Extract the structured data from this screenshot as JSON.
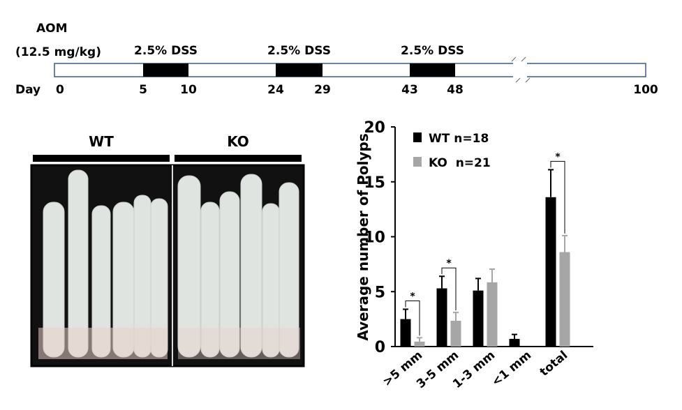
{
  "timeline": {
    "agent": "AOM",
    "dose": "(12.5 mg/kg)",
    "day_label": "Day",
    "days": [
      0,
      5,
      10,
      24,
      29,
      43,
      48,
      100
    ],
    "treatments": [
      {
        "label": "2.5% DSS",
        "start": 5,
        "end": 10
      },
      {
        "label": "2.5% DSS",
        "start": 24,
        "end": 29
      },
      {
        "label": "2.5% DSS",
        "start": 43,
        "end": 48
      }
    ]
  },
  "photo": {
    "groups": [
      "WT",
      "KO"
    ]
  },
  "chart_data": {
    "type": "bar",
    "y_label": "Average number of Polyps",
    "categories": [
      ">5 mm",
      "3-5 mm",
      "1-3 mm",
      "<1 mm",
      "total"
    ],
    "series": [
      {
        "name": "WT n=18",
        "color": "#000000",
        "values": [
          2.5,
          5.3,
          5.1,
          0.7,
          13.6
        ],
        "errors": [
          0.9,
          1.1,
          1.1,
          0.4,
          2.5
        ]
      },
      {
        "name": "KO  n=21",
        "color": "#a6a6a6",
        "values": [
          0.45,
          2.35,
          5.85,
          0,
          8.6
        ],
        "errors": [
          0.35,
          0.75,
          1.2,
          0,
          1.5
        ]
      }
    ],
    "ylim": [
      0,
      20
    ],
    "yticks": [
      0,
      5,
      10,
      15,
      20
    ],
    "significance": [
      {
        "category": ">5 mm",
        "label": "*"
      },
      {
        "category": "3-5 mm",
        "label": "*"
      },
      {
        "category": "total",
        "label": "*"
      }
    ]
  }
}
